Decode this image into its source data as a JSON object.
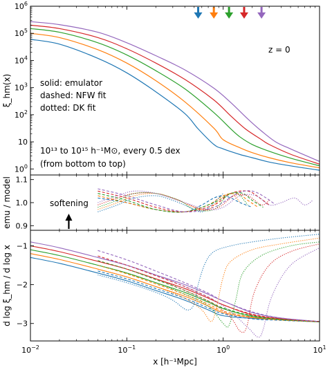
{
  "chart_data": [
    {
      "type": "line",
      "panel": "top",
      "xscale": "log",
      "yscale": "log",
      "xlim": [
        0.01,
        10
      ],
      "ylim": [
        0.6,
        1000000
      ],
      "ylabel": "ξ_hm(x)",
      "y_ticks": [
        {
          "v": 1,
          "b": "10",
          "e": "0"
        },
        {
          "v": 10,
          "b": "10",
          "e": ""
        },
        {
          "v": 100,
          "b": "10",
          "e": "2"
        },
        {
          "v": 1000,
          "b": "10",
          "e": "3"
        },
        {
          "v": 10000,
          "b": "10",
          "e": "4"
        },
        {
          "v": 100000,
          "b": "10",
          "e": "5"
        },
        {
          "v": 1000000,
          "b": "10",
          "e": "6"
        }
      ],
      "annotations": {
        "redshift": "z = 0",
        "style_solid": "solid: emulator",
        "style_dashed": "dashed: NFW fit",
        "style_dotted": "dotted: DK fit",
        "mass_range": "10¹³ to 10¹⁵ h⁻¹M⊙, every 0.5 dex",
        "order": "(from bottom to top)"
      },
      "arrows": {
        "x": [
          0.55,
          0.8,
          1.15,
          1.65,
          2.5
        ],
        "colors": [
          "#1f77b4",
          "#ff7f0e",
          "#2ca02c",
          "#d62728",
          "#9467bd"
        ]
      },
      "series": [
        {
          "color": "#1f77b4",
          "x": [
            0.01,
            0.02,
            0.05,
            0.1,
            0.2,
            0.4,
            0.55,
            0.8,
            1,
            1.5,
            2,
            3,
            5,
            10
          ],
          "values": [
            60000,
            40000,
            12000,
            3500,
            700,
            110,
            30,
            8,
            5.5,
            3.4,
            2.6,
            1.8,
            1.3,
            0.9
          ]
        },
        {
          "color": "#ff7f0e",
          "x": [
            0.01,
            0.02,
            0.05,
            0.1,
            0.2,
            0.4,
            0.8,
            1,
            1.5,
            2,
            3,
            5,
            10
          ],
          "values": [
            100000,
            70000,
            25000,
            8000,
            1800,
            300,
            32,
            12,
            6,
            4,
            2.6,
            1.7,
            1.1
          ]
        },
        {
          "color": "#2ca02c",
          "x": [
            0.01,
            0.02,
            0.05,
            0.1,
            0.2,
            0.4,
            0.8,
            1.2,
            1.5,
            2,
            3,
            5,
            10
          ],
          "values": [
            150000,
            110000,
            45000,
            16000,
            4200,
            900,
            120,
            30,
            15,
            8,
            4.5,
            2.5,
            1.3
          ]
        },
        {
          "color": "#d62728",
          "x": [
            0.01,
            0.02,
            0.05,
            0.1,
            0.2,
            0.4,
            0.8,
            1.2,
            1.7,
            2.5,
            3,
            5,
            10
          ],
          "values": [
            200000,
            150000,
            70000,
            27000,
            8000,
            2000,
            350,
            90,
            30,
            12,
            8,
            3.5,
            1.5
          ]
        },
        {
          "color": "#9467bd",
          "x": [
            0.01,
            0.02,
            0.05,
            0.1,
            0.2,
            0.4,
            0.8,
            1.2,
            1.8,
            2.5,
            3.5,
            5,
            10
          ],
          "values": [
            270000,
            210000,
            110000,
            45000,
            15000,
            4500,
            950,
            280,
            70,
            25,
            10,
            5.5,
            1.9
          ]
        }
      ]
    },
    {
      "type": "line",
      "panel": "middle",
      "xscale": "log",
      "xlim": [
        0.01,
        10
      ],
      "ylim": [
        0.88,
        1.12
      ],
      "ylabel": "emu / model",
      "y_ticks": [
        {
          "v": 0.9,
          "label": "0.9"
        },
        {
          "v": 1.0,
          "label": "1.0"
        },
        {
          "v": 1.1,
          "label": "1.1"
        }
      ],
      "annotations": {
        "softening": "softening"
      },
      "softening_arrow_x": 0.025,
      "nfw_ratio": [
        {
          "color": "#1f77b4",
          "x": [
            0.05,
            0.1,
            0.2,
            0.4,
            0.6,
            0.8,
            1.0,
            1.2,
            1.5,
            2.0
          ],
          "values": [
            1.02,
            1.0,
            0.97,
            0.96,
            0.99,
            1.02,
            1.03,
            1.02,
            1.0,
            0.98
          ]
        },
        {
          "color": "#ff7f0e",
          "x": [
            0.05,
            0.1,
            0.2,
            0.4,
            0.7,
            1.0,
            1.4,
            1.8,
            2.3
          ],
          "values": [
            1.03,
            1.0,
            0.97,
            0.96,
            0.99,
            1.03,
            1.04,
            1.01,
            0.98
          ]
        },
        {
          "color": "#2ca02c",
          "x": [
            0.05,
            0.1,
            0.2,
            0.4,
            0.8,
            1.2,
            1.6,
            2.0,
            2.6
          ],
          "values": [
            1.04,
            1.01,
            0.97,
            0.96,
            1.0,
            1.04,
            1.04,
            1.01,
            0.98
          ]
        },
        {
          "color": "#d62728",
          "x": [
            0.05,
            0.1,
            0.2,
            0.4,
            0.8,
            1.2,
            1.8,
            2.4,
            3.0
          ],
          "values": [
            1.05,
            1.02,
            0.98,
            0.96,
            0.99,
            1.04,
            1.05,
            1.02,
            0.99
          ]
        },
        {
          "color": "#9467bd",
          "x": [
            0.05,
            0.1,
            0.2,
            0.4,
            0.8,
            1.4,
            2.0,
            2.8,
            3.5
          ],
          "values": [
            1.06,
            1.03,
            0.99,
            0.96,
            0.98,
            1.04,
            1.05,
            1.02,
            0.99
          ]
        }
      ],
      "dk_ratio": [
        {
          "color": "#1f77b4",
          "x": [
            0.05,
            0.08,
            0.12,
            0.2,
            0.3,
            0.45,
            0.6,
            0.8,
            1.0
          ],
          "values": [
            0.96,
            0.99,
            1.02,
            1.03,
            1.01,
            0.98,
            0.96,
            1.0,
            1.04
          ]
        },
        {
          "color": "#ff7f0e",
          "x": [
            0.05,
            0.08,
            0.12,
            0.2,
            0.3,
            0.5,
            0.7,
            0.9,
            1.2,
            1.5
          ],
          "values": [
            0.97,
            1.0,
            1.03,
            1.04,
            1.02,
            0.98,
            0.97,
            1.01,
            1.04,
            1.0
          ]
        },
        {
          "color": "#2ca02c",
          "x": [
            0.05,
            0.08,
            0.12,
            0.2,
            0.35,
            0.5,
            0.8,
            1.1,
            1.4,
            1.8
          ],
          "values": [
            0.98,
            1.01,
            1.04,
            1.04,
            1.01,
            0.97,
            0.97,
            1.03,
            1.04,
            0.99
          ]
        },
        {
          "color": "#d62728",
          "x": [
            0.05,
            0.08,
            0.12,
            0.2,
            0.35,
            0.6,
            0.9,
            1.3,
            1.8,
            2.5,
            3.0
          ],
          "values": [
            0.99,
            1.02,
            1.04,
            1.04,
            1.01,
            0.97,
            0.98,
            1.03,
            1.03,
            0.99,
            1.01
          ]
        },
        {
          "color": "#9467bd",
          "x": [
            0.05,
            0.08,
            0.12,
            0.2,
            0.4,
            0.7,
            1.0,
            1.5,
            2.2,
            3.0,
            4.0,
            5.5,
            7.0,
            8.5
          ],
          "values": [
            1.0,
            1.03,
            1.05,
            1.04,
            1.0,
            0.97,
            0.98,
            1.03,
            1.03,
            0.99,
            1.0,
            1.02,
            0.99,
            1.01
          ]
        }
      ]
    },
    {
      "type": "line",
      "panel": "bottom",
      "xscale": "log",
      "xlim": [
        0.01,
        10
      ],
      "ylim": [
        -3.45,
        -0.6
      ],
      "ylabel": "d log ξ_hm / d log x",
      "xlabel": "x [h⁻¹Mpc]",
      "x_ticks": [
        {
          "v": 0.01,
          "b": "10",
          "e": "−2"
        },
        {
          "v": 0.1,
          "b": "10",
          "e": "−1"
        },
        {
          "v": 1,
          "b": "10",
          "e": "0"
        },
        {
          "v": 10,
          "b": "10",
          "e": "1"
        }
      ],
      "y_ticks": [
        {
          "v": -1,
          "label": "−1"
        },
        {
          "v": -2,
          "label": "−2"
        },
        {
          "v": -3,
          "label": "−3"
        }
      ],
      "emulator": [
        {
          "color": "#1f77b4",
          "x": [
            0.01,
            0.02,
            0.05,
            0.1,
            0.2,
            0.4,
            0.7,
            1,
            2,
            4,
            10
          ],
          "values": [
            -1.3,
            -1.45,
            -1.7,
            -1.9,
            -2.15,
            -2.4,
            -2.65,
            -2.8,
            -2.87,
            -2.9,
            -2.95
          ]
        },
        {
          "color": "#ff7f0e",
          "x": [
            0.01,
            0.02,
            0.05,
            0.1,
            0.2,
            0.4,
            0.7,
            1,
            2,
            4,
            10
          ],
          "values": [
            -1.2,
            -1.35,
            -1.6,
            -1.8,
            -2.05,
            -2.3,
            -2.55,
            -2.72,
            -2.85,
            -2.9,
            -2.95
          ]
        },
        {
          "color": "#2ca02c",
          "x": [
            0.01,
            0.02,
            0.05,
            0.1,
            0.2,
            0.4,
            0.7,
            1,
            2,
            4,
            10
          ],
          "values": [
            -1.1,
            -1.25,
            -1.5,
            -1.7,
            -1.95,
            -2.2,
            -2.45,
            -2.62,
            -2.82,
            -2.9,
            -2.95
          ]
        },
        {
          "color": "#d62728",
          "x": [
            0.01,
            0.02,
            0.05,
            0.1,
            0.2,
            0.4,
            0.7,
            1,
            2,
            4,
            10
          ],
          "values": [
            -1.0,
            -1.15,
            -1.4,
            -1.6,
            -1.85,
            -2.1,
            -2.35,
            -2.52,
            -2.78,
            -2.88,
            -2.95
          ]
        },
        {
          "color": "#9467bd",
          "x": [
            0.01,
            0.02,
            0.05,
            0.1,
            0.2,
            0.4,
            0.7,
            1,
            2,
            4,
            10
          ],
          "values": [
            -0.9,
            -1.05,
            -1.3,
            -1.5,
            -1.75,
            -2.0,
            -2.25,
            -2.42,
            -2.72,
            -2.86,
            -2.95
          ]
        }
      ],
      "nfw_fit": [
        {
          "color": "#1f77b4",
          "x": [
            0.05,
            0.1,
            0.2,
            0.4,
            0.7,
            1,
            2,
            4,
            10
          ],
          "values": [
            -1.65,
            -1.85,
            -2.1,
            -2.35,
            -2.6,
            -2.75,
            -2.88,
            -2.92,
            -2.96
          ]
        },
        {
          "color": "#ff7f0e",
          "x": [
            0.05,
            0.1,
            0.2,
            0.4,
            0.7,
            1,
            2,
            4,
            10
          ],
          "values": [
            -1.5,
            -1.72,
            -1.98,
            -2.25,
            -2.5,
            -2.68,
            -2.84,
            -2.91,
            -2.96
          ]
        },
        {
          "color": "#2ca02c",
          "x": [
            0.05,
            0.1,
            0.2,
            0.4,
            0.7,
            1,
            2,
            4,
            10
          ],
          "values": [
            -1.38,
            -1.6,
            -1.87,
            -2.15,
            -2.42,
            -2.6,
            -2.8,
            -2.9,
            -2.96
          ]
        },
        {
          "color": "#d62728",
          "x": [
            0.05,
            0.1,
            0.2,
            0.4,
            0.7,
            1,
            2,
            4,
            10
          ],
          "values": [
            -1.26,
            -1.5,
            -1.77,
            -2.05,
            -2.32,
            -2.52,
            -2.76,
            -2.88,
            -2.95
          ]
        },
        {
          "color": "#9467bd",
          "x": [
            0.05,
            0.1,
            0.2,
            0.4,
            0.7,
            1,
            2,
            4,
            10
          ],
          "values": [
            -1.12,
            -1.36,
            -1.65,
            -1.95,
            -2.22,
            -2.42,
            -2.7,
            -2.86,
            -2.95
          ]
        }
      ],
      "dk_fit": [
        {
          "color": "#1f77b4",
          "x": [
            0.05,
            0.1,
            0.2,
            0.3,
            0.42,
            0.5,
            0.55,
            0.65,
            0.8,
            1.2,
            2,
            4,
            10
          ],
          "values": [
            -1.75,
            -1.95,
            -2.2,
            -2.4,
            -2.65,
            -2.5,
            -2.0,
            -1.45,
            -1.15,
            -1.0,
            -0.9,
            -0.8,
            -0.7
          ]
        },
        {
          "color": "#ff7f0e",
          "x": [
            0.05,
            0.1,
            0.2,
            0.4,
            0.6,
            0.75,
            0.85,
            1.0,
            1.2,
            2,
            4,
            10
          ],
          "values": [
            -1.6,
            -1.8,
            -2.05,
            -2.35,
            -2.65,
            -2.95,
            -2.6,
            -1.8,
            -1.4,
            -1.1,
            -0.95,
            -0.8
          ]
        },
        {
          "color": "#2ca02c",
          "x": [
            0.05,
            0.1,
            0.2,
            0.4,
            0.7,
            1.0,
            1.15,
            1.35,
            1.6,
            2.5,
            5,
            10
          ],
          "values": [
            -1.5,
            -1.7,
            -1.95,
            -2.25,
            -2.55,
            -3.0,
            -3.05,
            -2.4,
            -1.7,
            -1.25,
            -1.0,
            -0.9
          ]
        },
        {
          "color": "#d62728",
          "x": [
            0.05,
            0.1,
            0.2,
            0.4,
            0.8,
            1.2,
            1.5,
            1.75,
            2.1,
            3,
            5,
            10
          ],
          "values": [
            -1.4,
            -1.6,
            -1.85,
            -2.15,
            -2.5,
            -2.85,
            -3.2,
            -3.1,
            -2.2,
            -1.5,
            -1.15,
            -0.95
          ]
        },
        {
          "color": "#9467bd",
          "x": [
            0.05,
            0.1,
            0.2,
            0.4,
            0.8,
            1.2,
            1.8,
            2.3,
            2.6,
            3.2,
            5,
            10
          ],
          "values": [
            -1.3,
            -1.5,
            -1.75,
            -2.05,
            -2.4,
            -2.7,
            -3.1,
            -3.35,
            -3.15,
            -2.3,
            -1.5,
            -1.05
          ]
        }
      ]
    }
  ]
}
